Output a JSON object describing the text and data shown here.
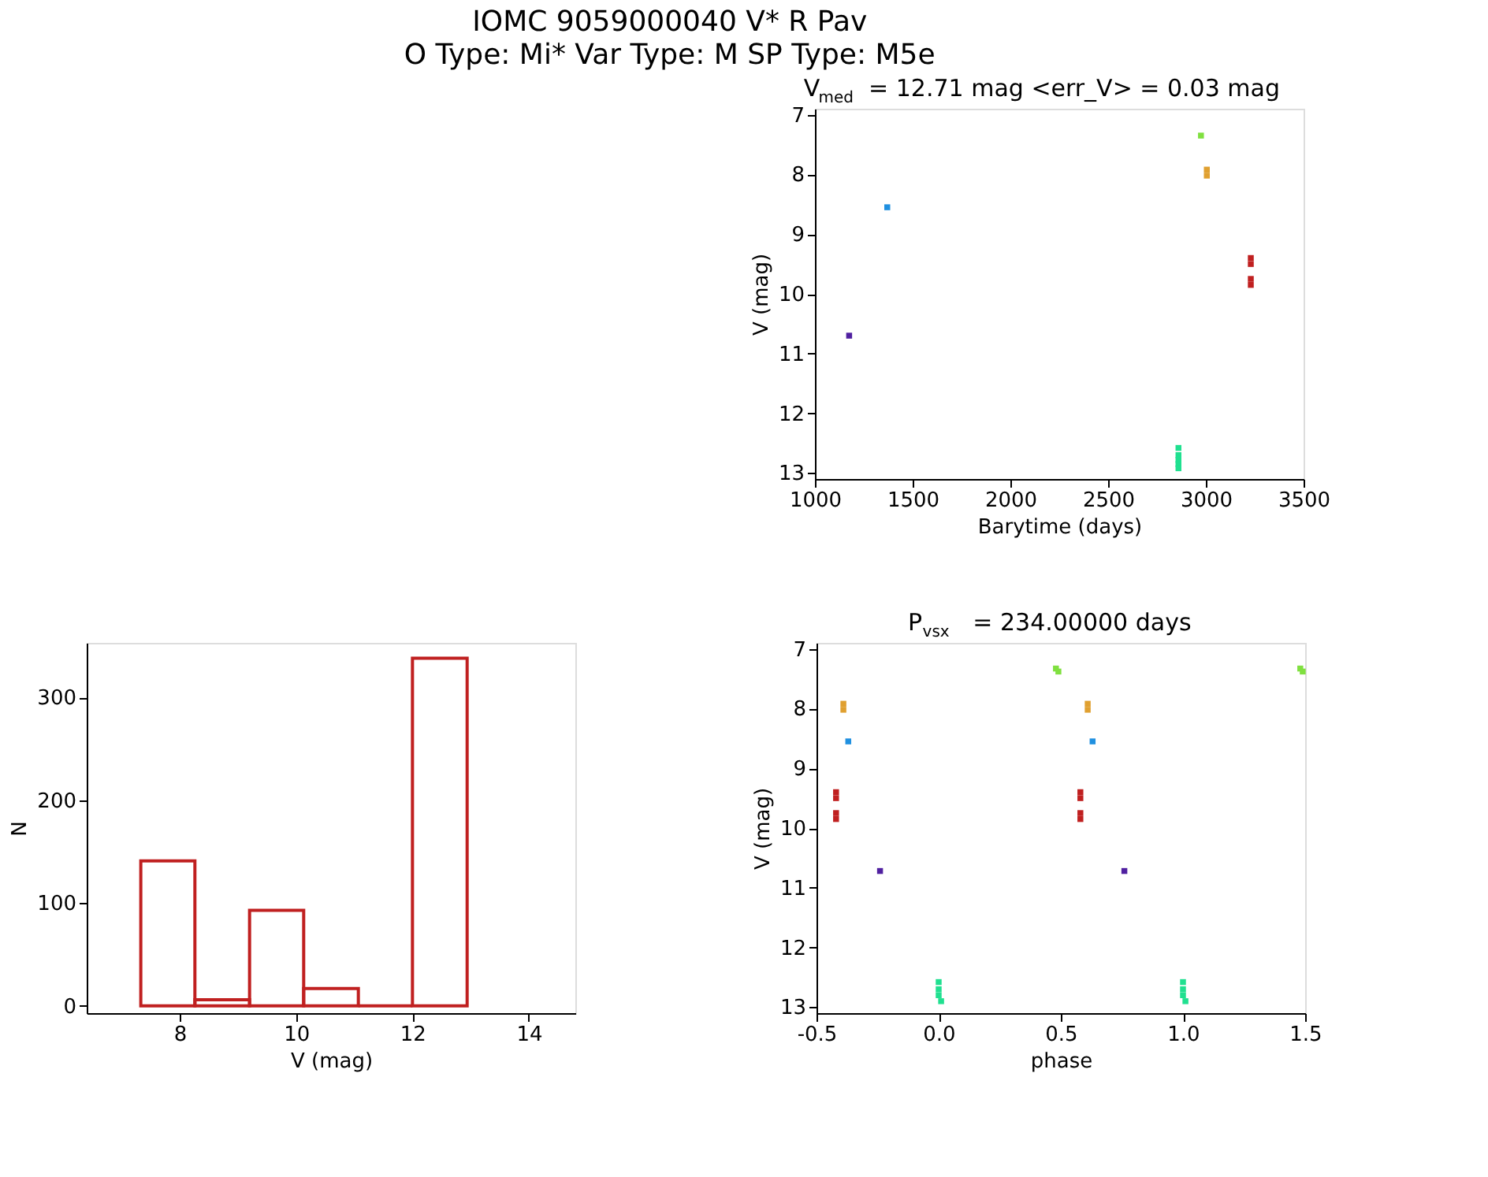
{
  "chart_data": [
    {
      "type": "other",
      "title": "IOMC 9059000040   V* R Pav",
      "subtitle": "O Type: Mi*  Var Type: M  SP Type: M5e"
    },
    {
      "type": "scatter",
      "title": "V$_{med}$ = 12.71 mag <err_V> = 0.03 mag",
      "xlabel": "Barytime (days)",
      "ylabel": "V (mag)",
      "xlim": [
        1000,
        3500
      ],
      "xticks": [
        1000,
        1500,
        2000,
        2500,
        3000,
        3500
      ],
      "ylim": [
        13.1,
        6.9
      ],
      "yticks": [
        7,
        8,
        9,
        10,
        11,
        12,
        13
      ],
      "marker": "square",
      "series": [
        {
          "color": "#5020a0",
          "x": [
            1175
          ],
          "values": [
            10.7
          ]
        },
        {
          "color": "#2090e0",
          "x": [
            1370
          ],
          "values": [
            8.55
          ]
        },
        {
          "color": "#20e090",
          "x": [
            2860,
            2860,
            2860,
            2860,
            2860
          ],
          "values": [
            12.58,
            12.7,
            12.78,
            12.85,
            12.92
          ]
        },
        {
          "color": "#80e040",
          "x": [
            2975
          ],
          "values": [
            7.35
          ]
        },
        {
          "color": "#e0a030",
          "x": [
            3005,
            3005
          ],
          "values": [
            7.92,
            8.02
          ]
        },
        {
          "color": "#c02020",
          "x": [
            3230,
            3230,
            3230,
            3230
          ],
          "values": [
            9.4,
            9.5,
            9.75,
            9.85
          ]
        }
      ]
    },
    {
      "type": "histogram",
      "xlabel": "V (mag)",
      "ylabel": "N",
      "xlim": [
        6.4,
        14.8
      ],
      "xticks": [
        8,
        10,
        12,
        14
      ],
      "ylim": [
        -7,
        353
      ],
      "yticks": [
        0,
        100,
        200,
        300
      ],
      "color": "#c02020",
      "bins": [
        7.33,
        8.26,
        9.2,
        10.13,
        11.07,
        12.0,
        12.94
      ],
      "values": [
        141,
        6,
        93,
        17,
        0,
        338
      ]
    },
    {
      "type": "scatter",
      "title": "P$_{vsx}$ = 234.00000 days",
      "xlabel": "phase",
      "ylabel": "V (mag)",
      "xlim": [
        -0.5,
        1.5
      ],
      "xticks": [
        {
          "value": -0.5,
          "label": "-0.5"
        },
        {
          "value": 0,
          "label": "0.0"
        },
        {
          "value": 0.5,
          "label": "0.5"
        },
        {
          "value": 1,
          "label": "1.0"
        },
        {
          "value": 1.5,
          "label": "1.5"
        }
      ],
      "ylim": [
        13.1,
        6.9
      ],
      "yticks": [
        7,
        8,
        9,
        10,
        11,
        12,
        13
      ],
      "marker": "square",
      "series": [
        {
          "color": "#5020a0",
          "x": [
            -0.24,
            0.76
          ],
          "values": [
            10.72,
            10.72
          ]
        },
        {
          "color": "#2090e0",
          "x": [
            -0.37,
            0.63
          ],
          "values": [
            8.55,
            8.55
          ]
        },
        {
          "color": "#20e090",
          "x": [
            0.0,
            0.0,
            0.0,
            0.01,
            1.0,
            1.0,
            1.0,
            1.01
          ],
          "values": [
            12.58,
            12.7,
            12.8,
            12.9,
            12.58,
            12.7,
            12.8,
            12.9
          ]
        },
        {
          "color": "#80e040",
          "x": [
            0.48,
            0.49,
            1.48,
            1.49
          ],
          "values": [
            7.33,
            7.38,
            7.33,
            7.38
          ]
        },
        {
          "color": "#e0a030",
          "x": [
            -0.39,
            -0.39,
            0.61,
            0.61
          ],
          "values": [
            7.92,
            8.02,
            7.92,
            8.02
          ]
        },
        {
          "color": "#c02020",
          "x": [
            -0.42,
            -0.42,
            -0.42,
            -0.42,
            0.58,
            0.58,
            0.58,
            0.58
          ],
          "values": [
            9.4,
            9.5,
            9.75,
            9.85,
            9.4,
            9.5,
            9.75,
            9.85
          ]
        }
      ]
    }
  ]
}
